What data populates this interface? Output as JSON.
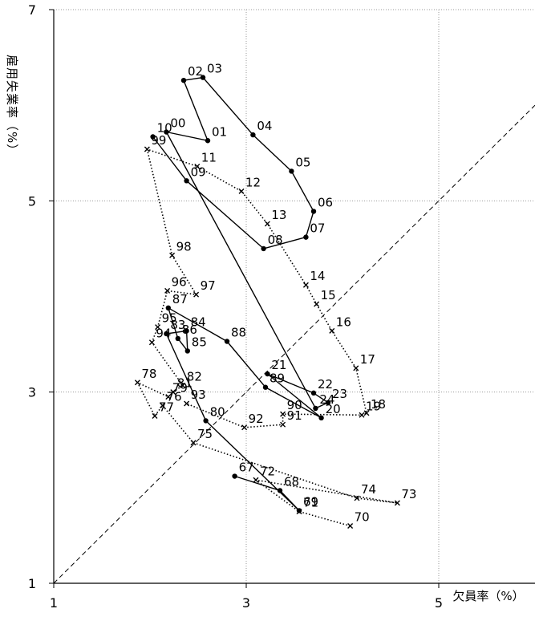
{
  "chart_data": {
    "type": "line",
    "title": "",
    "xlabel": "欠員率（%）",
    "ylabel": "雇用失業率（%）",
    "xlim": [
      1,
      6
    ],
    "ylim": [
      1,
      7
    ],
    "xticks": [
      {
        "v": 1,
        "label": "1"
      },
      {
        "v": 3,
        "label": "3"
      },
      {
        "v": 5,
        "label": "5"
      }
    ],
    "yticks": [
      {
        "v": 1,
        "label": "1"
      },
      {
        "v": 3,
        "label": "3"
      },
      {
        "v": 5,
        "label": "5"
      },
      {
        "v": 7,
        "label": "7"
      }
    ],
    "grid": true,
    "reference_line": {
      "style": "dashed",
      "from": [
        1,
        1
      ],
      "to": [
        6,
        6
      ]
    },
    "series": [
      {
        "style": "dotted",
        "marker": "x",
        "points": [
          {
            "x": 4.08,
            "y": 1.6,
            "label": "70"
          },
          {
            "x": 3.55,
            "y": 1.75,
            "label": "71"
          },
          {
            "x": 3.1,
            "y": 2.08,
            "label": "72"
          },
          {
            "x": 4.57,
            "y": 1.84,
            "label": "73"
          },
          {
            "x": 4.15,
            "y": 1.89,
            "label": "74"
          },
          {
            "x": 2.45,
            "y": 2.47,
            "label": "75"
          },
          {
            "x": 2.13,
            "y": 2.86,
            "label": "76"
          },
          {
            "x": 2.05,
            "y": 2.75,
            "label": "77"
          },
          {
            "x": 1.87,
            "y": 3.1,
            "label": "78"
          },
          {
            "x": 2.19,
            "y": 2.95,
            "label": "79"
          },
          {
            "x": 2.24,
            "y": 3.0,
            "label": "81"
          },
          {
            "x": 2.34,
            "y": 3.07,
            "label": "82"
          },
          {
            "x": 2.02,
            "y": 3.52,
            "label": "94"
          },
          {
            "x": 2.08,
            "y": 3.68,
            "label": "95"
          },
          {
            "x": 2.18,
            "y": 4.06,
            "label": "96"
          },
          {
            "x": 2.48,
            "y": 4.02,
            "label": "97"
          },
          {
            "x": 2.23,
            "y": 4.43,
            "label": "98"
          },
          {
            "x": 1.97,
            "y": 5.54,
            "label": "99"
          },
          {
            "x": 2.49,
            "y": 5.36,
            "label": "11"
          },
          {
            "x": 2.95,
            "y": 5.1,
            "label": "12"
          },
          {
            "x": 3.22,
            "y": 4.76,
            "label": "13"
          },
          {
            "x": 3.62,
            "y": 4.12,
            "label": "14"
          },
          {
            "x": 3.73,
            "y": 3.92,
            "label": "15"
          },
          {
            "x": 3.89,
            "y": 3.64,
            "label": "16"
          },
          {
            "x": 4.14,
            "y": 3.25,
            "label": "17"
          },
          {
            "x": 4.25,
            "y": 2.78,
            "label": "18"
          },
          {
            "x": 4.2,
            "y": 2.76,
            "label": "19"
          },
          {
            "x": 3.38,
            "y": 2.77,
            "label": "90"
          },
          {
            "x": 3.38,
            "y": 2.66,
            "label": "91"
          },
          {
            "x": 2.98,
            "y": 2.63,
            "label": "92"
          },
          {
            "x": 2.38,
            "y": 2.88,
            "label": "93"
          }
        ]
      },
      {
        "style": "solid",
        "marker": "circle",
        "points": [
          {
            "x": 2.88,
            "y": 2.12,
            "label": "67"
          },
          {
            "x": 3.35,
            "y": 1.97,
            "label": "68"
          },
          {
            "x": 3.55,
            "y": 1.76,
            "label": "69"
          },
          {
            "x": 2.58,
            "y": 2.7,
            "label": "80"
          },
          {
            "x": 2.17,
            "y": 3.61,
            "label": "83"
          },
          {
            "x": 2.38,
            "y": 3.64,
            "label": "84"
          },
          {
            "x": 2.39,
            "y": 3.43,
            "label": "85"
          },
          {
            "x": 2.29,
            "y": 3.56,
            "label": "86"
          },
          {
            "x": 2.19,
            "y": 3.88,
            "label": "87"
          },
          {
            "x": 2.8,
            "y": 3.53,
            "label": "88"
          },
          {
            "x": 3.2,
            "y": 3.05,
            "label": "89"
          },
          {
            "x": 3.78,
            "y": 2.73,
            "label": "20"
          },
          {
            "x": 3.22,
            "y": 3.19,
            "label": "21"
          },
          {
            "x": 3.7,
            "y": 2.99,
            "label": "22"
          },
          {
            "x": 3.85,
            "y": 2.89,
            "label": "23"
          },
          {
            "x": 3.72,
            "y": 2.83,
            "label": "24"
          },
          {
            "x": 2.17,
            "y": 5.72,
            "label": "00"
          },
          {
            "x": 2.6,
            "y": 5.63,
            "label": "01"
          },
          {
            "x": 2.35,
            "y": 6.26,
            "label": "02"
          },
          {
            "x": 2.55,
            "y": 6.29,
            "label": "03"
          },
          {
            "x": 3.07,
            "y": 5.69,
            "label": "04"
          },
          {
            "x": 3.47,
            "y": 5.31,
            "label": "05"
          },
          {
            "x": 3.7,
            "y": 4.89,
            "label": "06"
          },
          {
            "x": 3.62,
            "y": 4.62,
            "label": "07"
          },
          {
            "x": 3.18,
            "y": 4.5,
            "label": "08"
          },
          {
            "x": 2.38,
            "y": 5.21,
            "label": "09"
          },
          {
            "x": 2.03,
            "y": 5.67,
            "label": "10"
          }
        ]
      }
    ]
  }
}
